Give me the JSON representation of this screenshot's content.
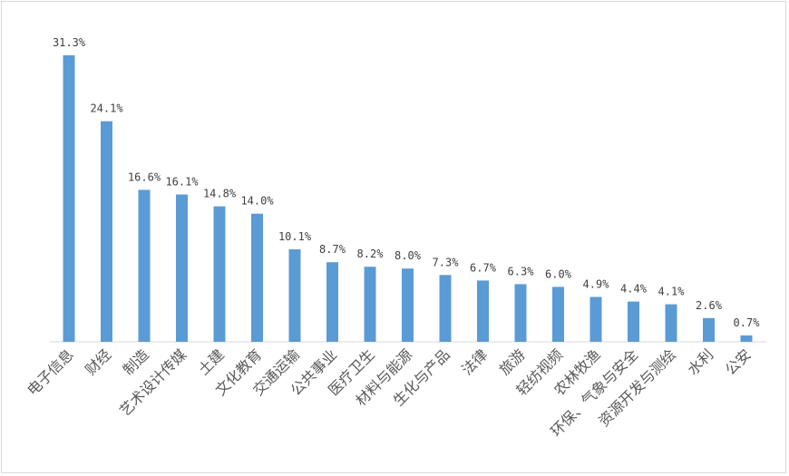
{
  "chart_data": {
    "type": "bar",
    "categories": [
      "电子信息",
      "财经",
      "制造",
      "艺术设计传媒",
      "土建",
      "文化教育",
      "交通运输",
      "公共事业",
      "医疗卫生",
      "材料与能源",
      "生化与产品",
      "法律",
      "旅游",
      "轻纺视频",
      "农林牧渔",
      "环保、气象与安全",
      "资源开发与测绘",
      "水利",
      "公安"
    ],
    "values": [
      31.3,
      24.1,
      16.6,
      16.1,
      14.8,
      14.0,
      10.1,
      8.7,
      8.2,
      8.0,
      7.3,
      6.7,
      6.3,
      6.0,
      4.9,
      4.4,
      4.1,
      2.6,
      0.7
    ],
    "data_labels": [
      "31.3%",
      "24.1%",
      "16.6%",
      "16.1%",
      "14.8%",
      "14.0%",
      "10.1%",
      "8.7%",
      "8.2%",
      "8.0%",
      "7.3%",
      "6.7%",
      "6.3%",
      "6.0%",
      "4.9%",
      "4.4%",
      "4.1%",
      "2.6%",
      "0.7%"
    ],
    "title": "",
    "xlabel": "",
    "ylabel": "",
    "ylim": [
      0,
      31.3
    ],
    "grid": false,
    "legend": "none",
    "bar_color": "#5b9bd5"
  }
}
